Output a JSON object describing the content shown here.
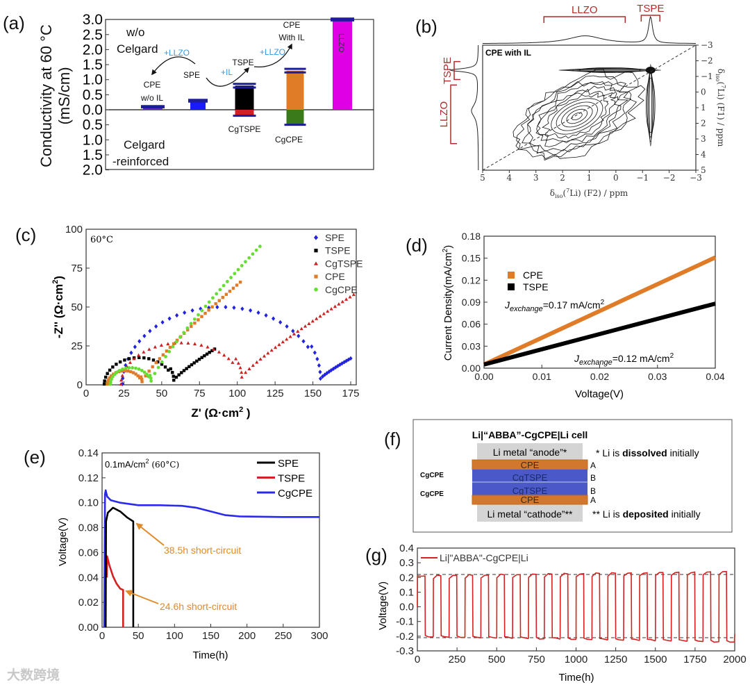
{
  "panel_labels": {
    "a": "(a)",
    "b": "(b)",
    "c": "(c)",
    "d": "(d)",
    "e": "(e)",
    "f": "(f)",
    "g": "(g)"
  },
  "watermark": "大数跨境",
  "colors": {
    "red_label": "#b02a2a",
    "annot_blue": "#3399ee",
    "annot_orange": "#e08a2a",
    "cap_navy": "#1c1c9c"
  },
  "chart_data": [
    {
      "id": "a",
      "type": "bar",
      "ylabel_line1": "Conductivity at 60 °C",
      "ylabel_line2": "(mS/cm)",
      "categories": [
        "CPE w/o IL",
        "SPE",
        "TSPE",
        "CPE With IL",
        "LLZO"
      ],
      "ylim_top": [
        0,
        3.0
      ],
      "ylim_bottom": [
        0,
        2.0
      ],
      "yticks_top": [
        0,
        0.5,
        1.0,
        1.5,
        2.0,
        2.5,
        3.0
      ],
      "yticks_bottom": [
        0.5,
        1.0,
        1.5,
        2.0
      ],
      "series": [
        {
          "name": "w/o Celgard",
          "values": [
            0.1,
            0.3,
            0.8,
            1.3,
            3.0
          ],
          "errors": [
            0.02,
            0.03,
            0.06,
            0.06,
            0.03
          ],
          "colors": [
            "#5a2ad0",
            "#1a1aff",
            "#000000",
            "#e07b28",
            "#e000e6"
          ]
        },
        {
          "name": "Celgard-reinforced",
          "values": [
            null,
            null,
            0.2,
            0.5,
            null
          ],
          "colors": [
            null,
            null,
            "#d42020",
            "#3a7a1a",
            null
          ]
        }
      ],
      "text": {
        "wo": "w/o",
        "celgard_top": "Celgard",
        "celgard_bot": "Celgard",
        "reinforced": "-reinforced",
        "plus_llzo_1": "+LLZO",
        "plus_il": "+IL",
        "plus_llzo_2": "+LLZO",
        "cpe": "CPE",
        "wo_il": "w/o IL",
        "spe": "SPE",
        "tspe": "TSPE",
        "cpe2": "CPE",
        "with_il": "With IL",
        "llzo": "LLZO",
        "cgtspe": "CgTSPE",
        "cgcpe": "CgCPE"
      }
    },
    {
      "id": "b",
      "type": "heatmap",
      "inset_label": "CPE with IL",
      "xlabel": {
        "delta": "δ",
        "sub": "iso",
        "open": "(",
        "sup": "7",
        "rest": "Li) (F2) / ppm"
      },
      "ylabel": {
        "delta": "δ",
        "sub": "iso",
        "open": "(",
        "sup": "7",
        "rest": "Li) (F1) / ppm"
      },
      "xlim": [
        5,
        -3
      ],
      "ylim": [
        -3,
        5
      ],
      "xticks": [
        5,
        4,
        3,
        2,
        1,
        0,
        -1,
        -2,
        -3
      ],
      "yticks": [
        -3,
        -2,
        -1,
        0,
        1,
        2,
        3,
        4,
        5
      ],
      "top_projection_peaks": [
        {
          "center": 1.15,
          "width": 0.8,
          "height": 0.3
        },
        {
          "center": -1.3,
          "width": 0.09,
          "height": 1.0
        }
      ],
      "left_projection_peaks": [
        {
          "center": -1.4,
          "width": 0.12,
          "height": 1.0
        },
        {
          "center": 1.2,
          "width": 0.5,
          "height": 0.25
        }
      ],
      "brackets_top": [
        {
          "label": "LLZO",
          "range": [
            2.7,
            -0.35
          ]
        },
        {
          "label": "TSPE",
          "range": [
            -0.95,
            -1.65
          ]
        }
      ],
      "brackets_left": [
        {
          "label": "TSPE",
          "range": [
            -1.95,
            -0.8
          ]
        },
        {
          "label": "LLZO",
          "range": [
            -0.45,
            3.3
          ]
        }
      ],
      "contours": [
        {
          "name": "LLZO",
          "center": [
            1.2,
            1.2
          ],
          "levels": 12
        },
        {
          "name": "TSPE-horizontal",
          "f1": -1.4,
          "f2_range": [
            2.4,
            -1.95
          ]
        },
        {
          "name": "TSPE-vertical",
          "f2": -1.3,
          "f1_range": [
            -2.5,
            3.3
          ]
        }
      ]
    },
    {
      "id": "c",
      "type": "scatter",
      "inset_label": "60°C",
      "xlabel": {
        "main": "Z' (Ω·cm",
        "sup": "2",
        "close": " )"
      },
      "ylabel": {
        "main": "-Z'' (Ω·cm",
        "sup": "2",
        "close": ")"
      },
      "xlim": [
        0,
        175
      ],
      "ylim": [
        0,
        100
      ],
      "xticks": [
        0,
        25,
        50,
        75,
        100,
        125,
        150,
        175
      ],
      "yticks": [
        0,
        25,
        50,
        75,
        100
      ],
      "series": [
        {
          "name": "SPE",
          "color": "#2323dd",
          "marker": "diamond",
          "arc": {
            "start": 24,
            "end": 155,
            "peak": 50,
            "min": 4
          },
          "tail_end": [
            175,
            17
          ]
        },
        {
          "name": "TSPE",
          "color": "#000000",
          "marker": "square",
          "arc": {
            "start": 12,
            "end": 58,
            "peak": 17.5,
            "min": 3
          },
          "tail_end": [
            85,
            23
          ]
        },
        {
          "name": "CgTSPE",
          "color": "#cc2222",
          "marker": "triangle",
          "arc": {
            "start": 23,
            "end": 103,
            "peak": 27,
            "min": 5
          },
          "tail_end": [
            177,
            58
          ]
        },
        {
          "name": "CPE",
          "color": "#e07b28",
          "marker": "square",
          "arc": {
            "start": 14,
            "end": 37,
            "peak": 9,
            "min": 2
          },
          "tail_end": [
            102,
            66
          ]
        },
        {
          "name": "CgCPE",
          "color": "#66dd33",
          "marker": "circle",
          "arc": {
            "start": 16,
            "end": 43,
            "peak": 11,
            "min": 2.5
          },
          "tail_end": [
            115,
            89
          ]
        }
      ]
    },
    {
      "id": "d",
      "type": "line",
      "xlabel": "Voltage(V)",
      "ylabel": {
        "main": "Current Density(mA/cm",
        "sup": "2",
        "close": ")"
      },
      "xlim": [
        0,
        0.04
      ],
      "ylim": [
        0,
        0.18
      ],
      "xticks": [
        0,
        0.01,
        0.02,
        0.03,
        0.04
      ],
      "yticks": [
        0,
        0.03,
        0.06,
        0.09,
        0.12,
        0.15,
        0.18
      ],
      "series": [
        {
          "name": "CPE",
          "color": "#e07b28",
          "x": [
            0,
            0.04
          ],
          "y": [
            0.005,
            0.151
          ]
        },
        {
          "name": "TSPE",
          "color": "#000000",
          "x": [
            0,
            0.04
          ],
          "y": [
            0.005,
            0.088
          ]
        }
      ],
      "annotations": [
        {
          "j": "J",
          "sub": "exchange",
          "value": "=0.17 mA/cm",
          "sup": "2"
        },
        {
          "j": "J",
          "sub": "exchange",
          "value": "=0.12 mA/cm",
          "sup": "2"
        }
      ]
    },
    {
      "id": "e",
      "type": "line",
      "xlabel": "Time(h)",
      "ylabel": "Voltage(V)",
      "condition": {
        "main": "0.1mA/cm",
        "sup": "2",
        "temp": " (60°C)"
      },
      "xlim": [
        0,
        300
      ],
      "ylim": [
        0,
        0.14
      ],
      "xticks": [
        0,
        50,
        100,
        150,
        200,
        250,
        300
      ],
      "yticks": [
        0,
        0.02,
        0.04,
        0.06,
        0.08,
        0.1,
        0.12,
        0.14
      ],
      "series": [
        {
          "name": "SPE",
          "color": "#000000",
          "points": [
            [
              5,
              0
            ],
            [
              5.5,
              0.085
            ],
            [
              8,
              0.092
            ],
            [
              15,
              0.096
            ],
            [
              25,
              0.093
            ],
            [
              35,
              0.088
            ],
            [
              43,
              0.085
            ],
            [
              43,
              0
            ]
          ]
        },
        {
          "name": "TSPE",
          "color": "#d42020",
          "points": [
            [
              6.5,
              0.04
            ],
            [
              7,
              0.057
            ],
            [
              10,
              0.05
            ],
            [
              15,
              0.041
            ],
            [
              20,
              0.035
            ],
            [
              25,
              0.031
            ],
            [
              29,
              0.03
            ],
            [
              29,
              0
            ]
          ]
        },
        {
          "name": "CgCPE",
          "color": "#2a2aee",
          "points": [
            [
              3,
              0
            ],
            [
              4,
              0.107
            ],
            [
              5,
              0.11
            ],
            [
              7,
              0.105
            ],
            [
              12,
              0.102
            ],
            [
              25,
              0.1
            ],
            [
              50,
              0.098
            ],
            [
              80,
              0.098
            ],
            [
              110,
              0.0975
            ],
            [
              130,
              0.096
            ],
            [
              150,
              0.093
            ],
            [
              170,
              0.09
            ],
            [
              190,
              0.089
            ],
            [
              250,
              0.0885
            ],
            [
              300,
              0.0885
            ]
          ]
        }
      ],
      "annotations": [
        "38.5h short-circuit",
        "24.6h short-circuit"
      ]
    },
    {
      "id": "g",
      "type": "line",
      "xlabel": "Time(h)",
      "ylabel": "Voltage(V)",
      "legend": "Li|\"ABBA\"-CgCPE|Li",
      "color": "#d42020",
      "xlim": [
        0,
        2000
      ],
      "ylim": [
        -0.3,
        0.4
      ],
      "xticks": [
        0,
        250,
        500,
        750,
        1000,
        1250,
        1500,
        1750,
        2000
      ],
      "yticks": [
        -0.3,
        -0.2,
        -0.1,
        0.0,
        0.1,
        0.2,
        0.3,
        0.4
      ],
      "square_wave": {
        "period_h": 100,
        "cycles": 20,
        "high_start": 0.21,
        "high_end": 0.24,
        "low_start": -0.2,
        "low_end": -0.235
      },
      "reference_lines": [
        0.22,
        -0.21
      ]
    }
  ],
  "diagram_f": {
    "title": "Li|“ABBA”-CgCPE|Li cell",
    "anode": "Li metal “anode”*",
    "cathode": "Li metal “cathode”**",
    "layers": [
      {
        "name": "CPE",
        "tag": "A",
        "color": "#d2782e"
      },
      {
        "name": "CgTSPE",
        "tag": "B",
        "color": "#4a58c8"
      },
      {
        "name": "CgTSPE",
        "tag": "B",
        "color": "#4a58c8"
      },
      {
        "name": "CPE",
        "tag": "A",
        "color": "#d2782e"
      }
    ],
    "group_labels": [
      "CgCPE",
      "CgCPE"
    ],
    "note_anode": {
      "pre": "* Li is ",
      "bold": "dissolved",
      "post": " initially"
    },
    "note_cathode": {
      "pre": "** Li is ",
      "bold": "deposited",
      "post": " initially"
    }
  }
}
